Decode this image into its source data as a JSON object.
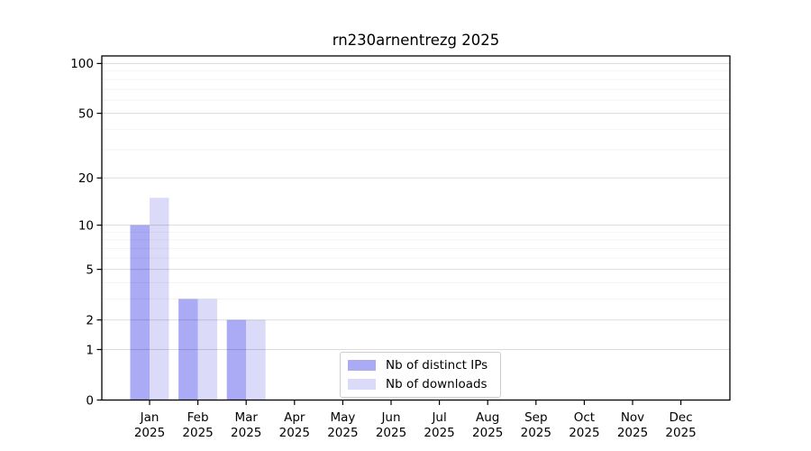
{
  "chart_data": {
    "type": "bar",
    "title": "rn230arnentrezg 2025",
    "categories": [
      "Jan",
      "Feb",
      "Mar",
      "Apr",
      "May",
      "Jun",
      "Jul",
      "Aug",
      "Sep",
      "Oct",
      "Nov",
      "Dec"
    ],
    "year_label": "2025",
    "series": [
      {
        "name": "Nb of distinct IPs",
        "color": "#aaaaf5",
        "values": [
          10,
          3,
          2,
          0,
          0,
          0,
          0,
          0,
          0,
          0,
          0,
          0
        ]
      },
      {
        "name": "Nb of downloads",
        "color": "#dbdbf9",
        "values": [
          15,
          3,
          2,
          0,
          0,
          0,
          0,
          0,
          0,
          0,
          0,
          0
        ]
      }
    ],
    "yscale": "log1p",
    "yticks": [
      0,
      1,
      2,
      5,
      10,
      20,
      50,
      100
    ],
    "minor_yticks": [
      3,
      4,
      6,
      7,
      8,
      9,
      30,
      40,
      60,
      70,
      80,
      90
    ],
    "ylim": [
      0,
      111
    ],
    "xlabel": "",
    "ylabel": "",
    "grid": "horizontal",
    "legend_position": "bottom-center"
  }
}
